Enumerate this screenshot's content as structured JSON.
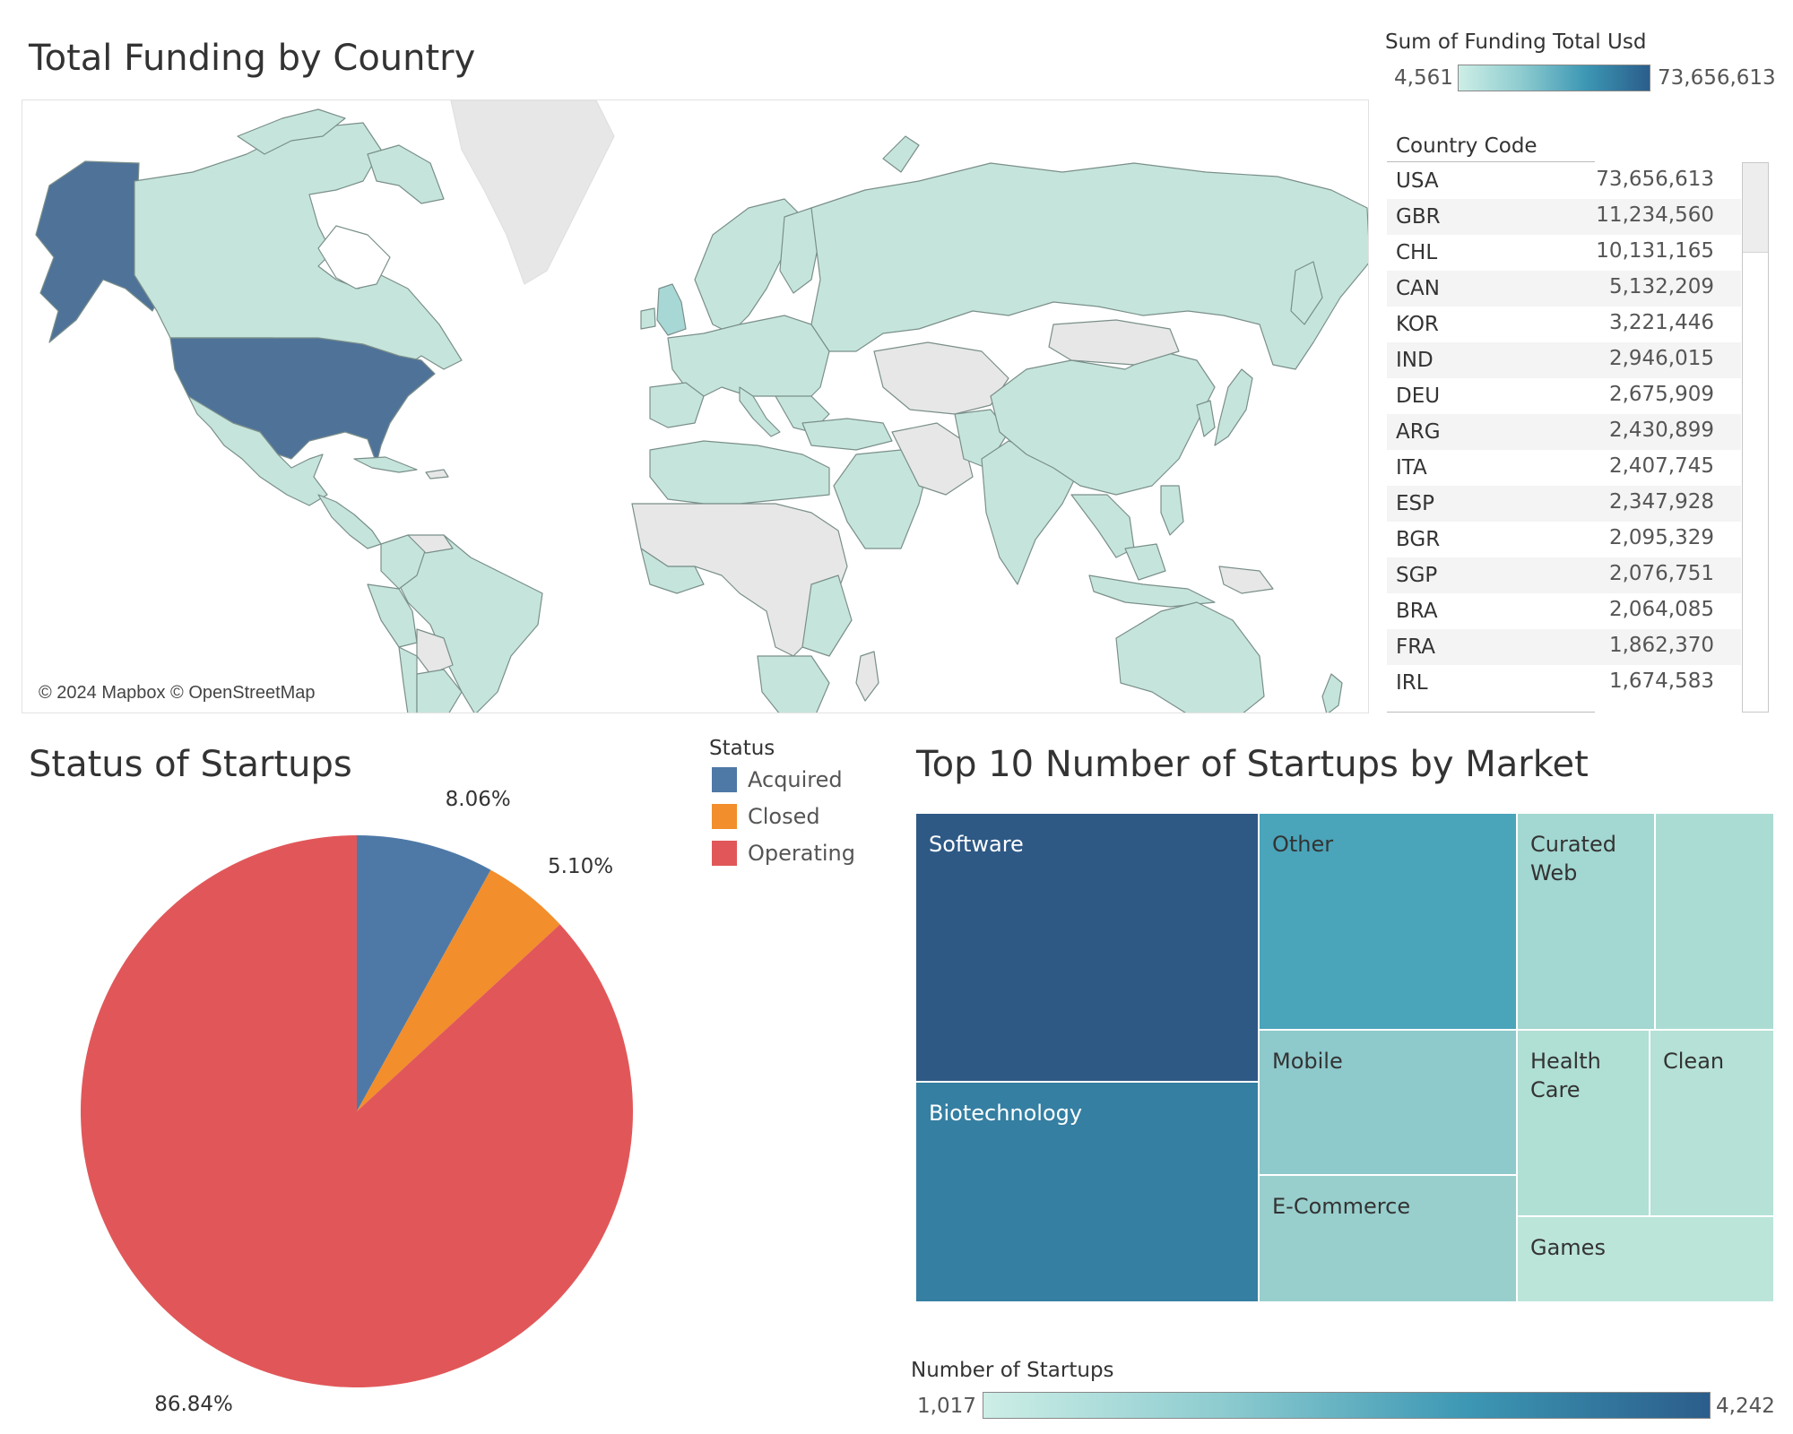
{
  "map": {
    "title": "Total Funding by Country",
    "attribution": "© 2024 Mapbox © OpenStreetMap",
    "legend": {
      "title": "Sum of Funding Total Usd",
      "min": "4,561",
      "max": "73,656,613"
    },
    "colors": {
      "low": "#c5e5dc",
      "high": "#4f7299",
      "nodata": "#e7e7e7",
      "border": "#7a8f8a"
    }
  },
  "table": {
    "header": "Country Code",
    "rows": [
      {
        "code": "USA",
        "value": "73,656,613"
      },
      {
        "code": "GBR",
        "value": "11,234,560"
      },
      {
        "code": "CHL",
        "value": "10,131,165"
      },
      {
        "code": "CAN",
        "value": "5,132,209"
      },
      {
        "code": "KOR",
        "value": "3,221,446"
      },
      {
        "code": "IND",
        "value": "2,946,015"
      },
      {
        "code": "DEU",
        "value": "2,675,909"
      },
      {
        "code": "ARG",
        "value": "2,430,899"
      },
      {
        "code": "ITA",
        "value": "2,407,745"
      },
      {
        "code": "ESP",
        "value": "2,347,928"
      },
      {
        "code": "BGR",
        "value": "2,095,329"
      },
      {
        "code": "SGP",
        "value": "2,076,751"
      },
      {
        "code": "BRA",
        "value": "2,064,085"
      },
      {
        "code": "FRA",
        "value": "1,862,370"
      },
      {
        "code": "IRL",
        "value": "1,674,583"
      }
    ]
  },
  "status": {
    "title": "Status of Startups",
    "legend_title": "Status",
    "items": [
      {
        "label": "Acquired",
        "color": "#4e79a7"
      },
      {
        "label": "Closed",
        "color": "#f28e2b"
      },
      {
        "label": "Operating",
        "color": "#e15759"
      }
    ]
  },
  "treemap": {
    "title": "Top 10 Number of Startups by Market",
    "legend": {
      "title": "Number of Startups",
      "min": "1,017",
      "max": "4,242"
    }
  },
  "chart_data": [
    {
      "type": "pie",
      "title": "Status of Startups",
      "slices": [
        {
          "name": "Acquired",
          "value": 8.06,
          "label": "8.06%",
          "color": "#4e79a7"
        },
        {
          "name": "Closed",
          "value": 5.1,
          "label": "5.10%",
          "color": "#f28e2b"
        },
        {
          "name": "Operating",
          "value": 86.84,
          "label": "86.84%",
          "color": "#e15759"
        }
      ]
    },
    {
      "type": "treemap",
      "title": "Top 10 Number of Startups by Market",
      "color_range": [
        1017,
        4242
      ],
      "items": [
        {
          "label": "Software",
          "color": "#2e5985"
        },
        {
          "label": "Biotechnology",
          "color": "#347fa2"
        },
        {
          "label": "Other",
          "color": "#4aa4ba"
        },
        {
          "label": "Mobile",
          "color": "#8ec9cc"
        },
        {
          "label": "E-Commerce",
          "color": "#98cfcd"
        },
        {
          "label": "Curated Web",
          "color": "#a3d7d1"
        },
        {
          "label": "",
          "color": "#abdcd3"
        },
        {
          "label": "Health Care",
          "color": "#b0dfd4"
        },
        {
          "label": "Clean",
          "color": "#b5e1d6"
        },
        {
          "label": "Games",
          "color": "#bce5da"
        }
      ]
    }
  ]
}
